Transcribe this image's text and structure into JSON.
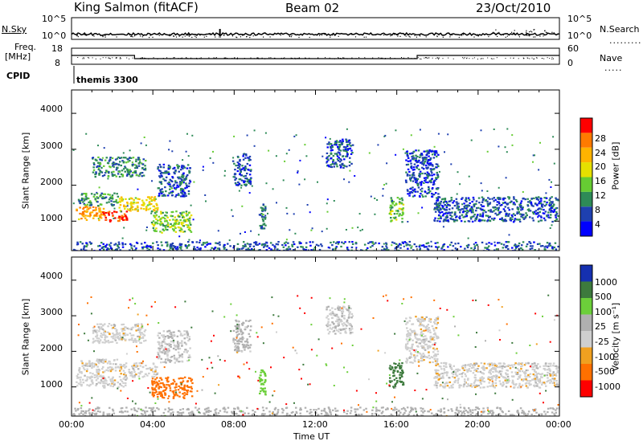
{
  "header": {
    "station": "King Salmon (fitACF)",
    "beam": "Beam 02",
    "date": "23/Oct/2010"
  },
  "top_panels": {
    "nsky_label": "N.Sky",
    "nsearch_label": "N.Search",
    "freq_label_1": "Freq.",
    "freq_label_2": "[MHz]",
    "nave_label": "Nave",
    "cpid_label": "CPID",
    "noise_tick_top": "10^5",
    "noise_tick_bottom": "10^0",
    "freq_ticks": [
      "18",
      "8"
    ],
    "nave_ticks": [
      "60",
      "0"
    ],
    "cpid_value": "themis 3300"
  },
  "axes": {
    "ylabel": "Slant Range [km]",
    "xlabel": "Time UT",
    "y_ticks": [
      "4000",
      "3000",
      "2000",
      "1000"
    ],
    "x_ticks": [
      "00:00",
      "04:00",
      "08:00",
      "12:00",
      "16:00",
      "20:00",
      "00:00"
    ]
  },
  "colorbars": {
    "power_label": "Power [dB]",
    "power_ticks": [
      "28",
      "24",
      "20",
      "16",
      "12",
      "8",
      "4"
    ],
    "power_colors": [
      "#ff0000",
      "#ff7a00",
      "#ffb300",
      "#e6e000",
      "#66cc33",
      "#2e8b57",
      "#1e40b0",
      "#0000ff"
    ],
    "velocity_label": "Velocity [m s⁻¹]",
    "velocity_ticks": [
      "1000",
      "500",
      "100",
      "25",
      "-25",
      "-100",
      "-500",
      "-1000"
    ],
    "velocity_colors": [
      "#1530b0",
      "#3d7a3d",
      "#6ccf3a",
      "#b0b0b0",
      "#cfcfcf",
      "#f0a020",
      "#ff7000",
      "#ff0000"
    ]
  },
  "chart_data": {
    "type": "heatmap",
    "x_range_hours": [
      0,
      24
    ],
    "y_range_km": [
      180,
      4650
    ],
    "power_range_db": [
      0,
      30
    ],
    "velocity_range_ms": [
      -1000,
      1000
    ],
    "cpid_switch_hours": [
      3.1,
      17.0
    ],
    "freq_mhz_segments": [
      {
        "start": 0,
        "end": 3.1,
        "value": 13.5
      },
      {
        "start": 3.1,
        "end": 17.0,
        "value": 11.5
      },
      {
        "start": 17.0,
        "end": 24,
        "value": 13.5
      }
    ],
    "echo_regions": [
      {
        "t0": 0.2,
        "t1": 1.6,
        "r0": 1050,
        "r1": 1450,
        "power": 22,
        "velocity": 0
      },
      {
        "t0": 1.5,
        "t1": 2.7,
        "r0": 1000,
        "r1": 1300,
        "power": 27,
        "velocity": 0
      },
      {
        "t0": 2.3,
        "t1": 4.2,
        "r0": 1300,
        "r1": 1700,
        "power": 18,
        "velocity": 0
      },
      {
        "t0": 3.9,
        "t1": 5.9,
        "r0": 700,
        "r1": 1300,
        "power": 14,
        "velocity": -400
      },
      {
        "t0": 0.3,
        "t1": 2.3,
        "r0": 1450,
        "r1": 1800,
        "power": 10,
        "velocity": 0
      },
      {
        "t0": 1.0,
        "t1": 3.6,
        "r0": 2250,
        "r1": 2800,
        "power": 9,
        "velocity": 0
      },
      {
        "t0": 4.2,
        "t1": 5.8,
        "r0": 1700,
        "r1": 2600,
        "power": 6,
        "velocity": 20
      },
      {
        "t0": 7.9,
        "t1": 8.8,
        "r0": 2000,
        "r1": 2900,
        "power": 6,
        "velocity": 50
      },
      {
        "t0": 9.2,
        "t1": 9.5,
        "r0": 800,
        "r1": 1500,
        "power": 8,
        "velocity": 300
      },
      {
        "t0": 12.5,
        "t1": 13.8,
        "r0": 2500,
        "r1": 3300,
        "power": 6,
        "velocity": 20
      },
      {
        "t0": 15.6,
        "t1": 16.3,
        "r0": 1000,
        "r1": 1700,
        "power": 12,
        "velocity": 600
      },
      {
        "t0": 16.4,
        "t1": 18.0,
        "r0": 1700,
        "r1": 3000,
        "power": 5,
        "velocity": 0
      },
      {
        "t0": 17.8,
        "t1": 23.9,
        "r0": 1000,
        "r1": 1700,
        "power": 6,
        "velocity": 0
      },
      {
        "t0": 0.0,
        "t1": 24.0,
        "r0": 180,
        "r1": 450,
        "power": 6,
        "velocity": 60
      }
    ]
  }
}
